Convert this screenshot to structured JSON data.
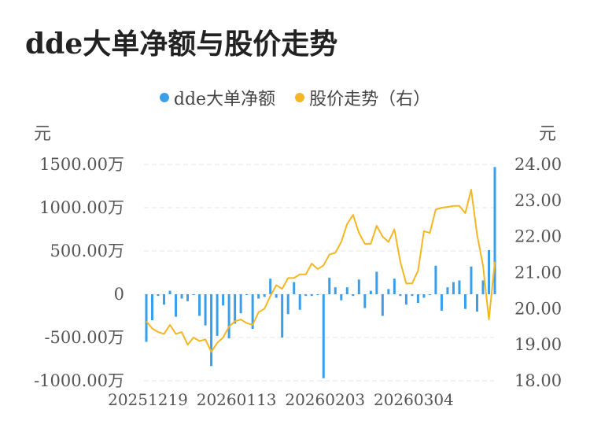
{
  "title": "dde大单净额与股价走势",
  "legend": [
    {
      "label": "dde大单净额",
      "color": "#3a9ee8"
    },
    {
      "label": "股价走势（右）",
      "color": "#f4b623"
    }
  ],
  "chart_data": {
    "type": "bar+line",
    "left_axis": {
      "unit": "元",
      "ticks": [
        "1500.00万",
        "1000.00万",
        "500.00万",
        "0",
        "-500.00万",
        "-1000.00万"
      ],
      "min": -1000,
      "max": 1500
    },
    "right_axis": {
      "unit": "元",
      "ticks": [
        "24.00",
        "23.00",
        "22.00",
        "21.00",
        "20.00",
        "19.00",
        "18.00"
      ],
      "min": 18,
      "max": 24
    },
    "x_labels": [
      "20251219",
      "20260113",
      "20260203",
      "20260304"
    ],
    "x_label_index": [
      0,
      15,
      30,
      45
    ],
    "series": [
      {
        "name": "dde大单净额",
        "type": "bar",
        "unit": "万",
        "values": [
          -550,
          -300,
          -20,
          -120,
          40,
          -260,
          -50,
          -80,
          -10,
          -250,
          -360,
          -830,
          -480,
          -130,
          -510,
          -340,
          -220,
          -10,
          -400,
          -50,
          -30,
          180,
          -40,
          -500,
          -230,
          140,
          -180,
          -20,
          -20,
          -10,
          -970,
          190,
          80,
          -70,
          80,
          -20,
          170,
          -160,
          40,
          260,
          -250,
          60,
          180,
          -20,
          -120,
          -20,
          -100,
          -40,
          -10,
          330,
          -190,
          80,
          140,
          160,
          -170,
          320,
          -200,
          160,
          510,
          1470
        ]
      },
      {
        "name": "股价走势（右）",
        "type": "line",
        "values": [
          19.65,
          19.45,
          19.35,
          19.3,
          19.55,
          19.3,
          19.35,
          19.0,
          19.2,
          19.1,
          19.15,
          18.8,
          19.05,
          19.2,
          19.5,
          19.65,
          19.7,
          19.6,
          19.55,
          19.9,
          20.0,
          20.35,
          20.65,
          20.55,
          20.85,
          20.85,
          20.95,
          20.95,
          21.25,
          21.1,
          21.2,
          21.5,
          21.55,
          21.85,
          22.35,
          22.6,
          22.1,
          21.8,
          21.8,
          22.3,
          22.0,
          21.85,
          22.2,
          21.3,
          20.7,
          20.7,
          21.05,
          22.15,
          22.1,
          22.75,
          22.8,
          22.82,
          22.85,
          22.85,
          22.65,
          23.3,
          22.05,
          21.2,
          19.7,
          21.3
        ]
      }
    ]
  }
}
